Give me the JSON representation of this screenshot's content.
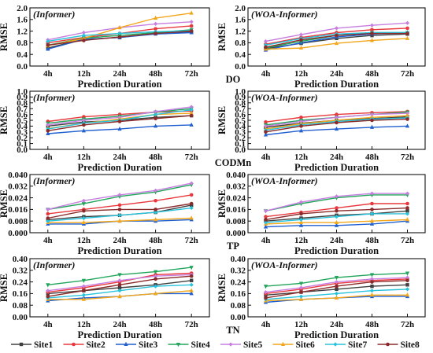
{
  "colors": {
    "Site1": "#404040",
    "Site2": "#e8383d",
    "Site3": "#1f5fcf",
    "Site4": "#21a55a",
    "Site5": "#c77ee0",
    "Site6": "#f2a61a",
    "Site7": "#27c3dc",
    "Site8": "#8b2a2a"
  },
  "chart_data": [
    {
      "type": "line",
      "indicator": "DO",
      "title": "(Informer)",
      "xlabel": "Prediction Duration",
      "ylabel": "RMSE",
      "categories": [
        "4h",
        "12h",
        "24h",
        "48h",
        "72h"
      ],
      "ylim": [
        0,
        2.0
      ],
      "yticks": [
        0.0,
        0.4,
        0.8,
        1.2,
        1.6,
        2.0
      ],
      "series": [
        {
          "name": "Site1",
          "values": [
            0.62,
            0.92,
            0.98,
            1.12,
            1.18
          ]
        },
        {
          "name": "Site2",
          "values": [
            0.8,
            0.98,
            1.12,
            1.28,
            1.38
          ]
        },
        {
          "name": "Site3",
          "values": [
            0.58,
            0.92,
            0.98,
            1.1,
            1.15
          ]
        },
        {
          "name": "Site4",
          "values": [
            0.72,
            0.96,
            1.05,
            1.15,
            1.25
          ]
        },
        {
          "name": "Site5",
          "values": [
            0.9,
            1.15,
            1.32,
            1.45,
            1.52
          ]
        },
        {
          "name": "Site6",
          "values": [
            0.7,
            0.95,
            1.32,
            1.65,
            1.82
          ]
        },
        {
          "name": "Site7",
          "values": [
            0.85,
            1.05,
            1.12,
            1.18,
            1.22
          ]
        },
        {
          "name": "Site8",
          "values": [
            0.72,
            0.88,
            1.0,
            1.12,
            1.2
          ]
        }
      ]
    },
    {
      "type": "line",
      "title": "(WOA-Informer)",
      "xlabel": "Prediction Duration",
      "ylabel": "RMSE",
      "categories": [
        "4h",
        "12h",
        "24h",
        "48h",
        "72h"
      ],
      "ylim": [
        0,
        2.0
      ],
      "yticks": [
        0.0,
        0.4,
        0.8,
        1.2,
        1.6,
        2.0
      ],
      "series": [
        {
          "name": "Site1",
          "values": [
            0.6,
            0.78,
            0.95,
            1.05,
            1.1
          ]
        },
        {
          "name": "Site2",
          "values": [
            0.75,
            0.98,
            1.15,
            1.25,
            1.3
          ]
        },
        {
          "name": "Site3",
          "values": [
            0.55,
            0.8,
            1.0,
            1.1,
            1.15
          ]
        },
        {
          "name": "Site4",
          "values": [
            0.62,
            0.85,
            1.05,
            1.15,
            1.15
          ]
        },
        {
          "name": "Site5",
          "values": [
            0.85,
            1.08,
            1.3,
            1.4,
            1.48
          ]
        },
        {
          "name": "Site6",
          "values": [
            0.58,
            0.62,
            0.78,
            0.88,
            0.95
          ]
        },
        {
          "name": "Site7",
          "values": [
            0.72,
            0.95,
            1.1,
            1.15,
            1.15
          ]
        },
        {
          "name": "Site8",
          "values": [
            0.65,
            0.9,
            1.05,
            1.12,
            1.12
          ]
        }
      ]
    },
    {
      "type": "line",
      "indicator": "CODMn",
      "title": "(Informer)",
      "xlabel": "Prediction Duration",
      "ylabel": "RMSE",
      "categories": [
        "4h",
        "12h",
        "24h",
        "48h",
        "72h"
      ],
      "ylim": [
        0,
        1.0
      ],
      "yticks": [
        0.0,
        0.1,
        0.2,
        0.3,
        0.4,
        0.5,
        0.6,
        0.7,
        0.8,
        0.9,
        1.0
      ],
      "series": [
        {
          "name": "Site1",
          "values": [
            0.4,
            0.47,
            0.5,
            0.55,
            0.58
          ]
        },
        {
          "name": "Site2",
          "values": [
            0.48,
            0.56,
            0.6,
            0.64,
            0.66
          ]
        },
        {
          "name": "Site3",
          "values": [
            0.27,
            0.32,
            0.35,
            0.4,
            0.42
          ]
        },
        {
          "name": "Site4",
          "values": [
            0.45,
            0.52,
            0.57,
            0.64,
            0.7
          ]
        },
        {
          "name": "Site5",
          "values": [
            0.42,
            0.5,
            0.55,
            0.65,
            0.73
          ]
        },
        {
          "name": "Site6",
          "values": [
            0.36,
            0.45,
            0.52,
            0.6,
            0.62
          ]
        },
        {
          "name": "Site7",
          "values": [
            0.35,
            0.45,
            0.5,
            0.6,
            0.68
          ]
        },
        {
          "name": "Site8",
          "values": [
            0.32,
            0.42,
            0.48,
            0.53,
            0.58
          ]
        }
      ]
    },
    {
      "type": "line",
      "title": "(WOA-Informer)",
      "xlabel": "Prediction Duration",
      "ylabel": "RMSE",
      "categories": [
        "4h",
        "12h",
        "24h",
        "48h",
        "72h"
      ],
      "ylim": [
        0,
        1.0
      ],
      "yticks": [
        0.0,
        0.1,
        0.2,
        0.3,
        0.4,
        0.5,
        0.6,
        0.7,
        0.8,
        0.9,
        1.0
      ],
      "series": [
        {
          "name": "Site1",
          "values": [
            0.38,
            0.45,
            0.5,
            0.53,
            0.56
          ]
        },
        {
          "name": "Site2",
          "values": [
            0.47,
            0.55,
            0.6,
            0.63,
            0.65
          ]
        },
        {
          "name": "Site3",
          "values": [
            0.25,
            0.32,
            0.35,
            0.38,
            0.4
          ]
        },
        {
          "name": "Site4",
          "values": [
            0.42,
            0.5,
            0.55,
            0.6,
            0.64
          ]
        },
        {
          "name": "Site5",
          "values": [
            0.4,
            0.48,
            0.55,
            0.6,
            0.62
          ]
        },
        {
          "name": "Site6",
          "values": [
            0.35,
            0.44,
            0.5,
            0.55,
            0.58
          ]
        },
        {
          "name": "Site7",
          "values": [
            0.33,
            0.42,
            0.48,
            0.52,
            0.54
          ]
        },
        {
          "name": "Site8",
          "values": [
            0.3,
            0.4,
            0.46,
            0.5,
            0.52
          ]
        }
      ]
    },
    {
      "type": "line",
      "indicator": "TP",
      "title": "(Informer)",
      "xlabel": "Prediction Duration",
      "ylabel": "RMSE",
      "categories": [
        "4h",
        "12h",
        "24h",
        "48h",
        "72h"
      ],
      "ylim": [
        0,
        0.04
      ],
      "yticks": [
        0.0,
        0.008,
        0.016,
        0.024,
        0.032,
        0.04
      ],
      "tick_decimals": 3,
      "series": [
        {
          "name": "Site1",
          "values": [
            0.009,
            0.011,
            0.012,
            0.014,
            0.019
          ]
        },
        {
          "name": "Site2",
          "values": [
            0.013,
            0.016,
            0.019,
            0.022,
            0.026
          ]
        },
        {
          "name": "Site3",
          "values": [
            0.006,
            0.006,
            0.008,
            0.008,
            0.009
          ]
        },
        {
          "name": "Site4",
          "values": [
            0.016,
            0.02,
            0.025,
            0.028,
            0.033
          ]
        },
        {
          "name": "Site5",
          "values": [
            0.016,
            0.022,
            0.026,
            0.029,
            0.034
          ]
        },
        {
          "name": "Site6",
          "values": [
            0.007,
            0.007,
            0.008,
            0.009,
            0.01
          ]
        },
        {
          "name": "Site7",
          "values": [
            0.008,
            0.01,
            0.012,
            0.014,
            0.017
          ]
        },
        {
          "name": "Site8",
          "values": [
            0.01,
            0.015,
            0.016,
            0.016,
            0.02
          ]
        }
      ]
    },
    {
      "type": "line",
      "title": "(WOA-Informer)",
      "xlabel": "Prediction Duration",
      "ylabel": "RMSE",
      "categories": [
        "4h",
        "12h",
        "24h",
        "48h",
        "72h"
      ],
      "ylim": [
        0,
        0.04
      ],
      "yticks": [
        0.0,
        0.008,
        0.016,
        0.024,
        0.032,
        0.04
      ],
      "tick_decimals": 3,
      "series": [
        {
          "name": "Site1",
          "values": [
            0.008,
            0.01,
            0.012,
            0.013,
            0.015
          ]
        },
        {
          "name": "Site2",
          "values": [
            0.011,
            0.014,
            0.017,
            0.02,
            0.02
          ]
        },
        {
          "name": "Site3",
          "values": [
            0.004,
            0.005,
            0.005,
            0.006,
            0.008
          ]
        },
        {
          "name": "Site4",
          "values": [
            0.015,
            0.02,
            0.024,
            0.026,
            0.026
          ]
        },
        {
          "name": "Site5",
          "values": [
            0.015,
            0.021,
            0.025,
            0.027,
            0.027
          ]
        },
        {
          "name": "Site6",
          "values": [
            0.006,
            0.007,
            0.007,
            0.008,
            0.009
          ]
        },
        {
          "name": "Site7",
          "values": [
            0.007,
            0.009,
            0.011,
            0.013,
            0.013
          ]
        },
        {
          "name": "Site8",
          "values": [
            0.009,
            0.013,
            0.015,
            0.016,
            0.017
          ]
        }
      ]
    },
    {
      "type": "line",
      "indicator": "TN",
      "title": "(Informer)",
      "xlabel": "Prediction Duration",
      "ylabel": "RMSE",
      "categories": [
        "4h",
        "12h",
        "24h",
        "48h",
        "72h"
      ],
      "ylim": [
        0,
        0.4
      ],
      "yticks": [
        0.0,
        0.08,
        0.16,
        0.24,
        0.32,
        0.4
      ],
      "tick_decimals": 2,
      "series": [
        {
          "name": "Site1",
          "values": [
            0.16,
            0.18,
            0.2,
            0.22,
            0.25
          ]
        },
        {
          "name": "Site2",
          "values": [
            0.17,
            0.2,
            0.24,
            0.29,
            0.3
          ]
        },
        {
          "name": "Site3",
          "values": [
            0.11,
            0.13,
            0.14,
            0.16,
            0.16
          ]
        },
        {
          "name": "Site4",
          "values": [
            0.22,
            0.25,
            0.29,
            0.31,
            0.34
          ]
        },
        {
          "name": "Site5",
          "values": [
            0.18,
            0.21,
            0.25,
            0.28,
            0.29
          ]
        },
        {
          "name": "Site6",
          "values": [
            0.12,
            0.12,
            0.14,
            0.16,
            0.18
          ]
        },
        {
          "name": "Site7",
          "values": [
            0.13,
            0.15,
            0.18,
            0.21,
            0.22
          ]
        },
        {
          "name": "Site8",
          "values": [
            0.14,
            0.18,
            0.22,
            0.26,
            0.28
          ]
        }
      ]
    },
    {
      "type": "line",
      "title": "(WOA-Informer)",
      "xlabel": "Prediction Duration",
      "ylabel": "RMSE",
      "categories": [
        "4h",
        "12h",
        "24h",
        "48h",
        "72h"
      ],
      "ylim": [
        0,
        0.4
      ],
      "yticks": [
        0.0,
        0.08,
        0.16,
        0.24,
        0.32,
        0.4
      ],
      "tick_decimals": 2,
      "series": [
        {
          "name": "Site1",
          "values": [
            0.15,
            0.17,
            0.19,
            0.21,
            0.22
          ]
        },
        {
          "name": "Site2",
          "values": [
            0.16,
            0.19,
            0.23,
            0.25,
            0.26
          ]
        },
        {
          "name": "Site3",
          "values": [
            0.1,
            0.12,
            0.13,
            0.14,
            0.14
          ]
        },
        {
          "name": "Site4",
          "values": [
            0.21,
            0.23,
            0.27,
            0.29,
            0.3
          ]
        },
        {
          "name": "Site5",
          "values": [
            0.17,
            0.2,
            0.24,
            0.26,
            0.27
          ]
        },
        {
          "name": "Site6",
          "values": [
            0.11,
            0.12,
            0.13,
            0.15,
            0.15
          ]
        },
        {
          "name": "Site7",
          "values": [
            0.12,
            0.14,
            0.16,
            0.18,
            0.19
          ]
        },
        {
          "name": "Site8",
          "values": [
            0.13,
            0.17,
            0.21,
            0.24,
            0.25
          ]
        }
      ]
    }
  ],
  "legend": {
    "position": "bottom",
    "entries": [
      "Site1",
      "Site2",
      "Site3",
      "Site4",
      "Site5",
      "Site6",
      "Site7",
      "Site8"
    ]
  }
}
